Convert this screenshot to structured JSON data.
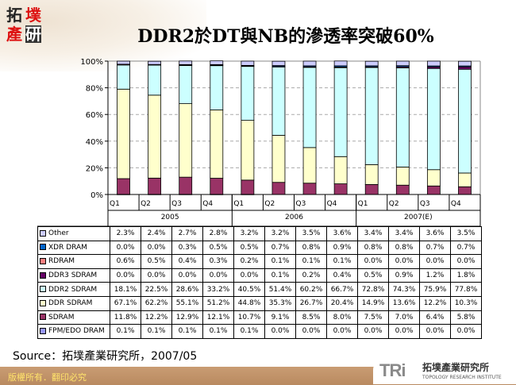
{
  "logo": {
    "chars": [
      "拓",
      "墣",
      "產",
      "研"
    ]
  },
  "title": "DDR2於DT與NB的滲透率突破60%",
  "source": "Source：拓墣產業研究所，2007/05",
  "footer": {
    "copyright": "版權所有．翻印必究",
    "brand_mark": "TRi",
    "brand_cn": "拓墣產業研究所",
    "brand_en": "TOPOLOGY RESEARCH INSTITUTE"
  },
  "chart_data": {
    "type": "bar",
    "stacked": true,
    "percent": true,
    "ylim": [
      0,
      100
    ],
    "yticks": [
      "0%",
      "20%",
      "40%",
      "60%",
      "80%",
      "100%"
    ],
    "grid": "dashed horizontal",
    "categories": [
      "Q1",
      "Q2",
      "Q3",
      "Q4",
      "Q1",
      "Q2",
      "Q3",
      "Q4",
      "Q1",
      "Q2",
      "Q3",
      "Q4"
    ],
    "groups": [
      {
        "label": "2005",
        "span": 4
      },
      {
        "label": "2006",
        "span": 4
      },
      {
        "label": "2007(E)",
        "span": 4
      }
    ],
    "series": [
      {
        "name": "Other",
        "color": "#ccccff",
        "values": [
          "2.3%",
          "2.4%",
          "2.7%",
          "2.8%",
          "3.2%",
          "3.2%",
          "3.5%",
          "3.6%",
          "3.4%",
          "3.4%",
          "3.6%",
          "3.5%"
        ]
      },
      {
        "name": "XDR DRAM",
        "color": "#0066cc",
        "values": [
          "0.0%",
          "0.0%",
          "0.3%",
          "0.5%",
          "0.5%",
          "0.7%",
          "0.8%",
          "0.9%",
          "0.8%",
          "0.8%",
          "0.7%",
          "0.7%"
        ]
      },
      {
        "name": "RDRAM",
        "color": "#ff8080",
        "values": [
          "0.6%",
          "0.5%",
          "0.4%",
          "0.3%",
          "0.2%",
          "0.1%",
          "0.1%",
          "0.1%",
          "0.0%",
          "0.0%",
          "0.0%",
          "0.0%"
        ]
      },
      {
        "name": "DDR3 SDRAM",
        "color": "#660066",
        "values": [
          "0.0%",
          "0.0%",
          "0.0%",
          "0.0%",
          "0.0%",
          "0.1%",
          "0.2%",
          "0.4%",
          "0.5%",
          "0.9%",
          "1.2%",
          "1.8%"
        ]
      },
      {
        "name": "DDR2 SDRAM",
        "color": "#ccffff",
        "values": [
          "18.1%",
          "22.5%",
          "28.6%",
          "33.2%",
          "40.5%",
          "51.4%",
          "60.2%",
          "66.7%",
          "72.8%",
          "74.3%",
          "75.9%",
          "77.8%"
        ]
      },
      {
        "name": "DDR SDRAM",
        "color": "#ffffcc",
        "values": [
          "67.1%",
          "62.2%",
          "55.1%",
          "51.2%",
          "44.8%",
          "35.3%",
          "26.7%",
          "20.4%",
          "14.9%",
          "13.6%",
          "12.2%",
          "10.3%"
        ]
      },
      {
        "name": "SDRAM",
        "color": "#993366",
        "values": [
          "11.8%",
          "12.2%",
          "12.9%",
          "12.1%",
          "10.7%",
          "9.1%",
          "8.5%",
          "8.0%",
          "7.5%",
          "7.0%",
          "6.4%",
          "5.8%"
        ]
      },
      {
        "name": "FPM/EDO DRAM",
        "color": "#9999ff",
        "values": [
          "0.1%",
          "0.1%",
          "0.1%",
          "0.1%",
          "0.1%",
          "0.0%",
          "0.0%",
          "0.0%",
          "0.0%",
          "0.0%",
          "0.0%",
          "0.0%"
        ]
      }
    ]
  }
}
